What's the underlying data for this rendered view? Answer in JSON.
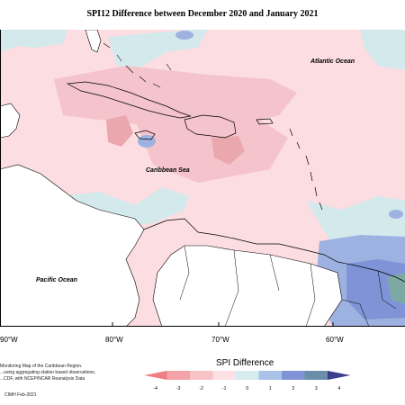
{
  "title": "SPI12 Difference between December 2020 and January 2021",
  "labels": {
    "atlantic": "Atlantic Ocean",
    "caribbean": "Caribbean Sea",
    "pacific": "Pacific Ocean"
  },
  "longitudes": [
    "90°W",
    "80°W",
    "70°W",
    "60°W"
  ],
  "info_lines": [
    "Monitoring Map of the Caribbean Region.",
    "...using aggregating station based observations,",
    "...CDF, with NCEP/NCAR Reanalysis Data"
  ],
  "credit": "CIMH Feb-2021",
  "legend": {
    "title": "SPI Difference",
    "ticks": [
      "-4",
      "-3",
      "-2",
      "-1",
      "0",
      "1",
      "2",
      "3",
      "4"
    ],
    "colors": [
      "#f07f85",
      "#f4a3a8",
      "#f7c3c7",
      "#fce0e3",
      "#d7ecee",
      "#a8c2e8",
      "#7f93d6",
      "#6b8fa8",
      "#3a3f8f"
    ]
  },
  "colors": {
    "light_pink": "#fbdde2",
    "pink": "#f4c3cb",
    "rose": "#eba7ae",
    "light_cyan": "#d3e9ec",
    "blue": "#9eb2e2",
    "dark_blue": "#7f93d6",
    "teal": "#7da9a5",
    "land": "#ffffff"
  }
}
